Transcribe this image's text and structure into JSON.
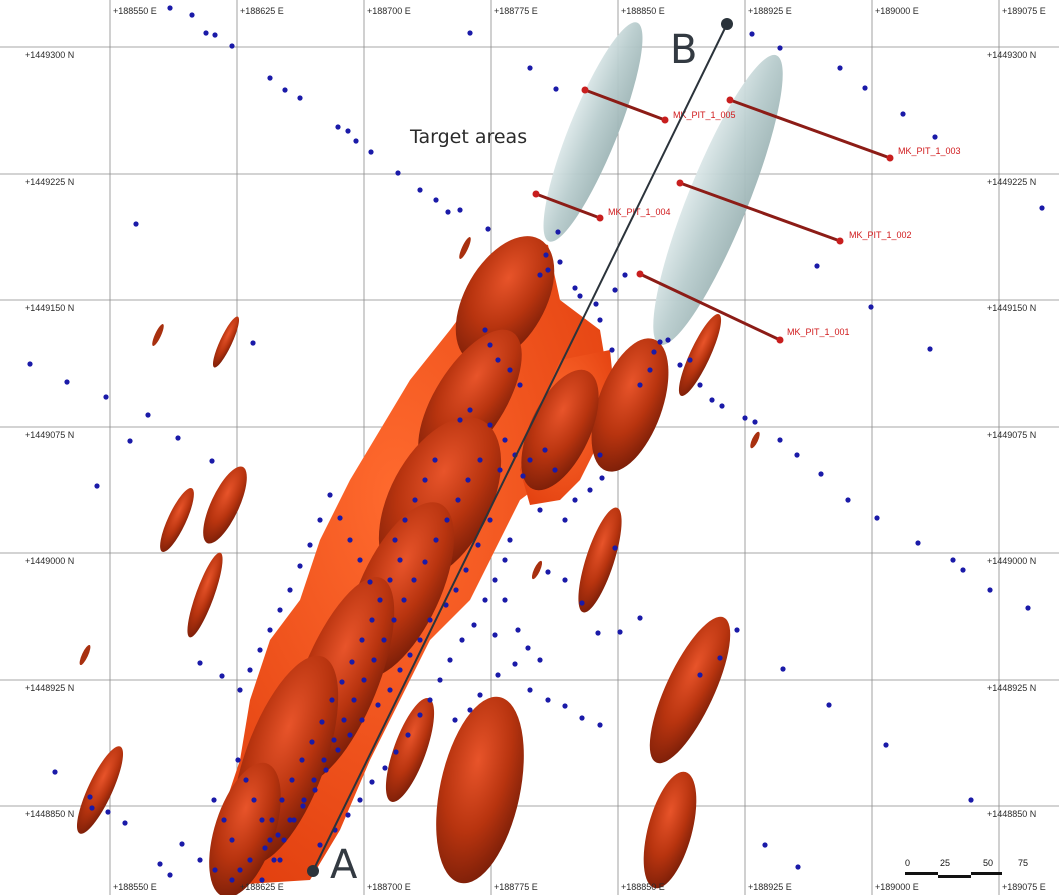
{
  "map": {
    "easting_labels": [
      "+188550 E",
      "+188625 E",
      "+188700 E",
      "+188775 E",
      "+188850 E",
      "+188925 E",
      "+189000 E",
      "+189075 E"
    ],
    "northing_labels": [
      "+1449300 N",
      "+1449225 N",
      "+1449150 N",
      "+1449075 N",
      "+1449000 N",
      "+1448925 N",
      "+1448850 N"
    ],
    "annotation": "Target  areas",
    "section": {
      "start_label": "A",
      "end_label": "B"
    },
    "planned_holes": [
      {
        "name": "MK_PIT_1_005"
      },
      {
        "name": "MK_PIT_1_003"
      },
      {
        "name": "MK_PIT_1_004"
      },
      {
        "name": "MK_PIT_1_002"
      },
      {
        "name": "MK_PIT_1_001"
      }
    ],
    "scale_bar": {
      "labels": [
        "0",
        "25",
        "50",
        "75"
      ]
    },
    "colors": {
      "orebody_bright": "#f0491a",
      "orebody_dark": "#a82a10",
      "drillhole_collar": "#1a1aa8",
      "planned_hole": "#8c1c16",
      "target_area": "#bccfd0",
      "section_line": "#2b333b",
      "grid": "#8a8a8a"
    }
  }
}
